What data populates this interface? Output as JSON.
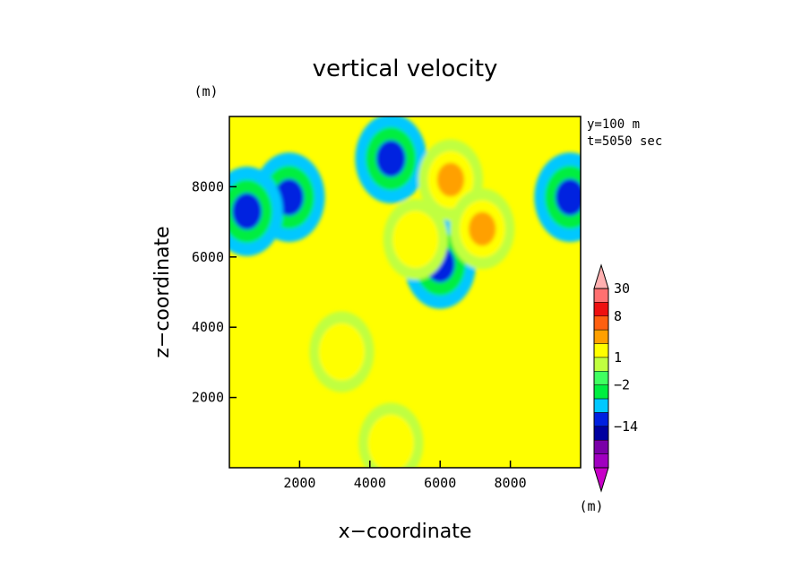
{
  "chart_data": {
    "type": "heatmap",
    "title": "vertical velocity",
    "xlabel": "x−coordinate",
    "ylabel": "z−coordinate",
    "y_unit": "(m)",
    "x_unit": "(m)",
    "annotations": [
      "y=100 m",
      "t=5050 sec"
    ],
    "xlim": [
      0,
      10000
    ],
    "ylim": [
      0,
      10000
    ],
    "x_ticks": [
      2000,
      4000,
      6000,
      8000
    ],
    "y_ticks": [
      2000,
      4000,
      6000,
      8000
    ],
    "x_tick_labels": [
      "2000",
      "4000",
      "6000",
      "8000"
    ],
    "y_tick_labels": [
      "2000",
      "4000",
      "6000",
      "8000"
    ],
    "grid": false,
    "colorbar": {
      "placement": "right",
      "levels": [
        -30,
        -22,
        -14,
        -8,
        -4,
        -2,
        -1,
        1,
        2,
        4,
        8,
        14,
        22,
        30
      ],
      "labels": [
        "30",
        "8",
        "1",
        "−2",
        "−14"
      ],
      "label_values": [
        30,
        8,
        1,
        -2,
        -14
      ],
      "colors": [
        "#c800c8",
        "#a000c0",
        "#7a00a8",
        "#0000a0",
        "#0020e0",
        "#00c8ff",
        "#00ee40",
        "#40ff60",
        "#c0ff40",
        "#ffff00",
        "#ffa000",
        "#ff6010",
        "#ee1010",
        "#ff7070",
        "#ffb0b0"
      ]
    },
    "field_features": [
      {
        "kind": "downdraft",
        "x": 1700,
        "z": 7700,
        "value": -4
      },
      {
        "kind": "downdraft",
        "x": 500,
        "z": 7300,
        "value": -4
      },
      {
        "kind": "downdraft",
        "x": 4600,
        "z": 8800,
        "value": -4
      },
      {
        "kind": "downdraft",
        "x": 9700,
        "z": 7700,
        "value": -4
      },
      {
        "kind": "downdraft",
        "x": 6000,
        "z": 5800,
        "value": -4
      },
      {
        "kind": "updraft",
        "x": 6300,
        "z": 8200,
        "value": 4
      },
      {
        "kind": "updraft",
        "x": 7200,
        "z": 6800,
        "value": 4
      },
      {
        "kind": "updraft",
        "x": 5300,
        "z": 6500,
        "value": 2
      },
      {
        "kind": "updraft",
        "x": 3200,
        "z": 3300,
        "value": 2
      },
      {
        "kind": "updraft",
        "x": 4600,
        "z": 700,
        "value": 2
      }
    ]
  }
}
